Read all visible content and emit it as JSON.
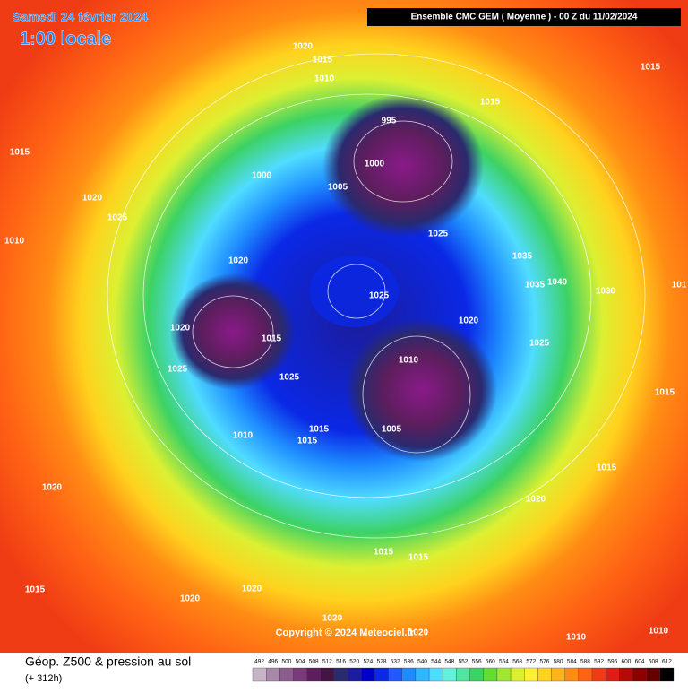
{
  "header": {
    "date": "Samedi 24 février 2024",
    "time": "1:00 locale",
    "model": "Ensemble CMC GEM  ( Moyenne )  -  00 Z du 11/02/2024"
  },
  "isobars": [
    "1020",
    "1015",
    "1010",
    "1015",
    "1015",
    "995",
    "1015",
    "1000",
    "1000",
    "1005",
    "1020",
    "1025",
    "1025",
    "1010",
    "1020",
    "1035",
    "1035",
    "1040",
    "1030",
    "1025",
    "101",
    "1020",
    "1020",
    "1015",
    "1025",
    "1010",
    "1025",
    "1025",
    "1015",
    "1005",
    "1015",
    "1010",
    "1015",
    "1020",
    "1015",
    "1020",
    "1015",
    "1015",
    "1015",
    "1020",
    "1020",
    "1020",
    "1010",
    "1010",
    "1020"
  ],
  "copyright": "Copyright © 2024 Meteociel.fr",
  "footer": {
    "title": "Géop. Z500 & pression au sol",
    "lead": "(+ 312h)"
  },
  "legend": {
    "values": [
      492,
      496,
      500,
      504,
      508,
      512,
      516,
      520,
      524,
      528,
      532,
      536,
      540,
      544,
      548,
      552,
      556,
      560,
      564,
      568,
      572,
      576,
      580,
      584,
      588,
      592,
      596,
      600,
      604,
      608,
      612
    ],
    "colors": [
      "#c8b4c8",
      "#a888a8",
      "#8c5c8c",
      "#7a3a7a",
      "#5c1e5c",
      "#441444",
      "#2a2a6e",
      "#1c1c9c",
      "#0000c8",
      "#0a28e6",
      "#1e5aff",
      "#1e8cff",
      "#32b4ff",
      "#50dcff",
      "#64f0dc",
      "#50e6a0",
      "#3cd264",
      "#64dc32",
      "#a0e632",
      "#dcf032",
      "#fff032",
      "#ffd21e",
      "#ffb41e",
      "#ff8c14",
      "#ff6414",
      "#f03c14",
      "#dc1e14",
      "#b40a0a",
      "#8c0000",
      "#640000",
      "#000000"
    ]
  }
}
